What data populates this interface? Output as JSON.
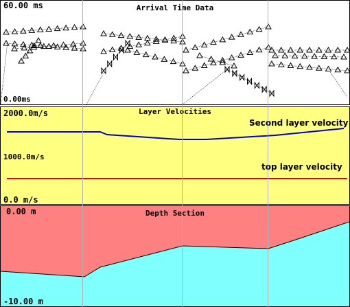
{
  "arrival_panel": {
    "title": "Arrival Time Data",
    "y_max_label": "60.00 ms",
    "y_min_label": "0.00ms"
  },
  "velocity_panel": {
    "title": "Layer Velocities",
    "y_max_label": "2000.0m/s",
    "y_mid_label": "1000.0m/s",
    "y_min_label": "0.0 m/s",
    "second_layer_label": "Second layer velocity",
    "top_layer_label": "top layer velocity",
    "second_layer_color": "#0000cc",
    "top_layer_color": "#dd0000",
    "background": "#ffff80"
  },
  "depth_panel": {
    "title": "Depth Section",
    "y_top_label": "0.00 m",
    "y_bottom_label": "-10.00 m",
    "top_layer_color": "#ff8080",
    "second_layer_color": "#80ffff"
  }
}
